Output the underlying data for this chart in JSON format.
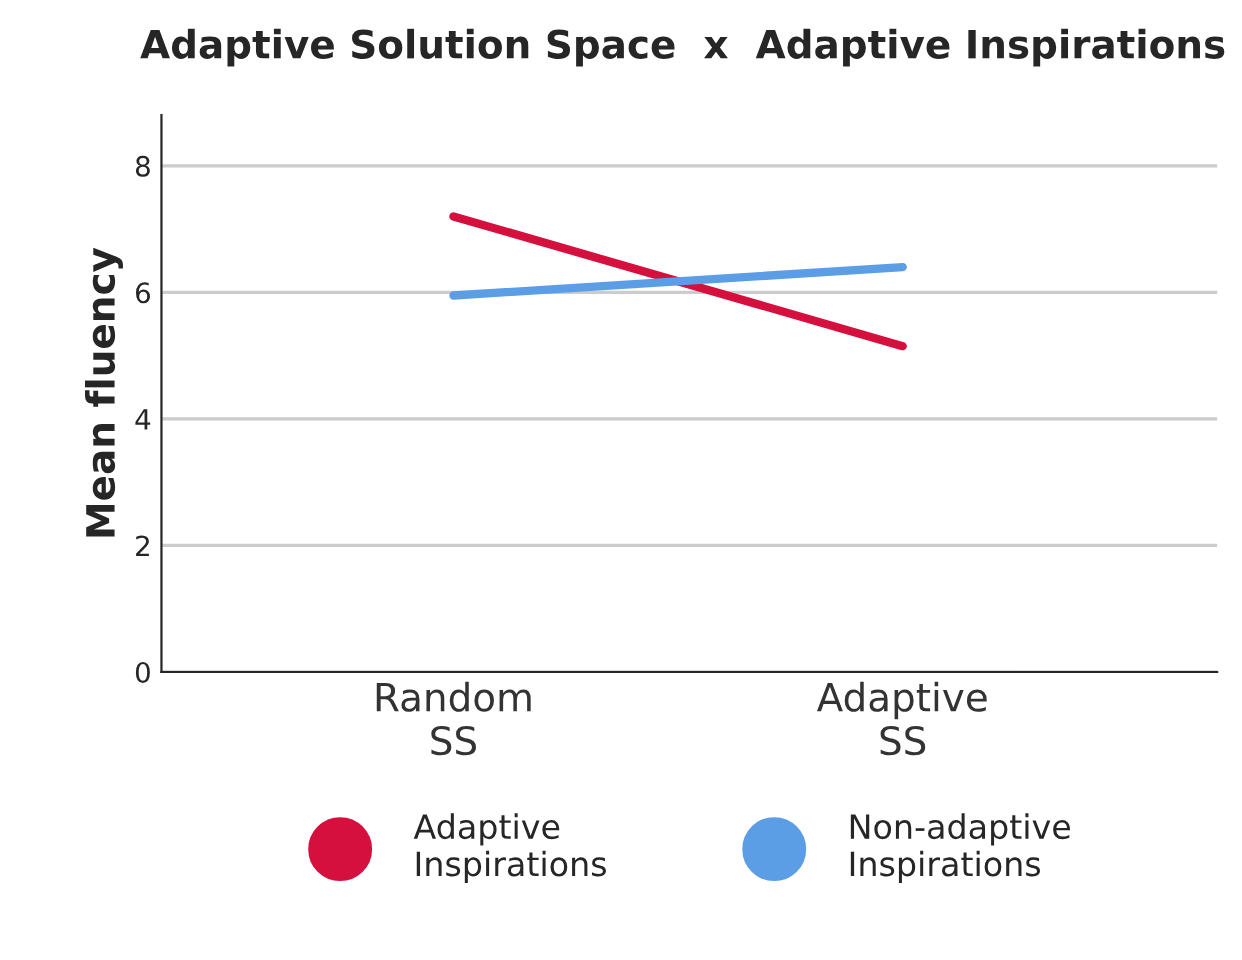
{
  "chart_data": {
    "type": "line",
    "title": "Adaptive Solution Space  x  Adaptive Inspirations",
    "ylabel": "Mean fluency",
    "categories": [
      "Random\nSS",
      "Adaptive\nSS"
    ],
    "series": [
      {
        "name": "Adaptive\nInspirations",
        "color": "#d5103f",
        "values": [
          7.2,
          5.15
        ]
      },
      {
        "name": "Non-adaptive\nInspirations",
        "color": "#5b9ee6",
        "values": [
          5.95,
          6.4
        ]
      }
    ],
    "ylim": [
      0,
      8.8
    ],
    "yticks": [
      0,
      2,
      4,
      6,
      8
    ],
    "grid": "y",
    "legend": "bottom",
    "line_style": "solid"
  }
}
